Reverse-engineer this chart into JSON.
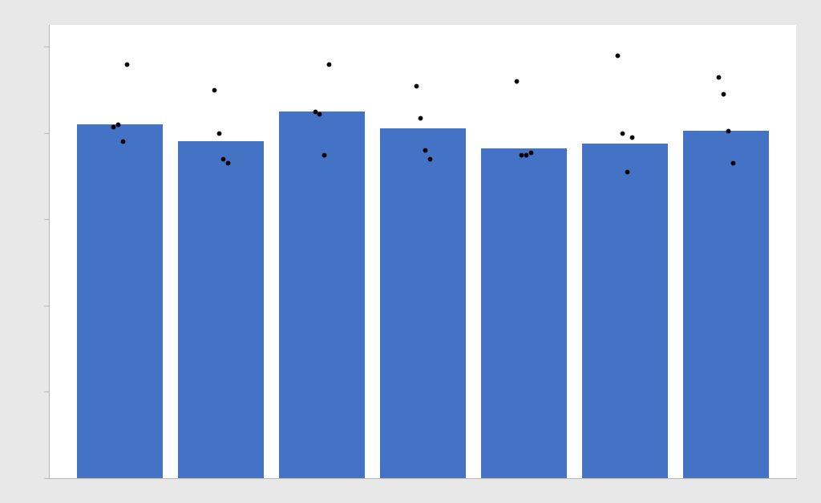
{
  "bar_positions": [
    1,
    2,
    3,
    4,
    5,
    6,
    7
  ],
  "bar_heights": [
    8.2,
    7.8,
    8.5,
    8.1,
    7.65,
    7.75,
    8.05
  ],
  "bar_color": "#4472C4",
  "bar_width": 0.85,
  "ylim": [
    0,
    10.5
  ],
  "yticks": [
    0,
    2,
    4,
    6,
    8,
    10
  ],
  "scatter_points": [
    [
      8.15,
      8.2,
      7.8,
      9.6
    ],
    [
      9.0,
      8.0,
      7.4,
      7.3
    ],
    [
      8.5,
      8.45,
      7.5,
      9.6
    ],
    [
      9.1,
      8.35,
      7.6,
      7.4
    ],
    [
      9.2,
      7.5,
      7.5,
      7.55
    ],
    [
      9.8,
      8.0,
      7.1,
      7.9
    ],
    [
      9.3,
      8.9,
      8.05,
      7.3
    ]
  ],
  "background_color": "#e8e8e8",
  "axes_bg_color": "#ffffff",
  "scatter_color": "black",
  "scatter_size": 10,
  "figsize": [
    10.24,
    6.27
  ],
  "dpi": 100,
  "xlim": [
    0.3,
    7.7
  ]
}
